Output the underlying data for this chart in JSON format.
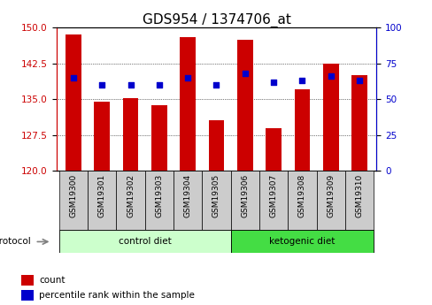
{
  "title": "GDS954 / 1374706_at",
  "samples": [
    "GSM19300",
    "GSM19301",
    "GSM19302",
    "GSM19303",
    "GSM19304",
    "GSM19305",
    "GSM19306",
    "GSM19307",
    "GSM19308",
    "GSM19309",
    "GSM19310"
  ],
  "counts": [
    148.5,
    134.5,
    135.2,
    133.8,
    148.0,
    130.5,
    147.5,
    129.0,
    137.0,
    142.5,
    140.0
  ],
  "percentiles": [
    65,
    60,
    60,
    60,
    65,
    60,
    68,
    62,
    63,
    66,
    63
  ],
  "ylim_left": [
    120,
    150
  ],
  "ylim_right": [
    0,
    100
  ],
  "yticks_left": [
    120,
    127.5,
    135,
    142.5,
    150
  ],
  "yticks_right": [
    0,
    25,
    50,
    75,
    100
  ],
  "bar_color": "#cc0000",
  "dot_color": "#0000cc",
  "control_group_count": 6,
  "keto_group_count": 5,
  "control_label": "control diet",
  "keto_label": "ketogenic diet",
  "protocol_label": "protocol",
  "legend_count": "count",
  "legend_pct": "percentile rank within the sample",
  "bar_width": 0.55,
  "grid_color": "#000000",
  "bg_plot": "#ffffff",
  "bg_xtick": "#cccccc",
  "bg_control": "#ccffcc",
  "bg_keto": "#44dd44",
  "title_fontsize": 11,
  "tick_fontsize": 7.5
}
